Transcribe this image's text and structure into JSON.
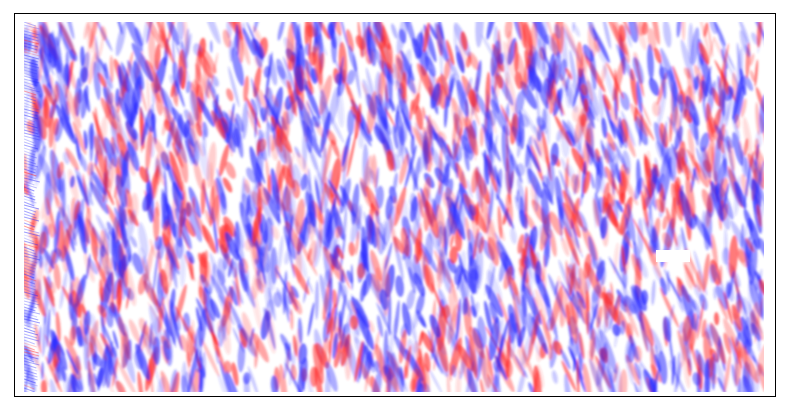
{
  "image": {
    "kind": "field-visualization",
    "colormap": "bwr",
    "colors": {
      "negative": "#2a2aff",
      "neutral": "#ffffff",
      "positive": "#ff2a2a",
      "frame": "#000000",
      "background": "#ffffff"
    }
  }
}
